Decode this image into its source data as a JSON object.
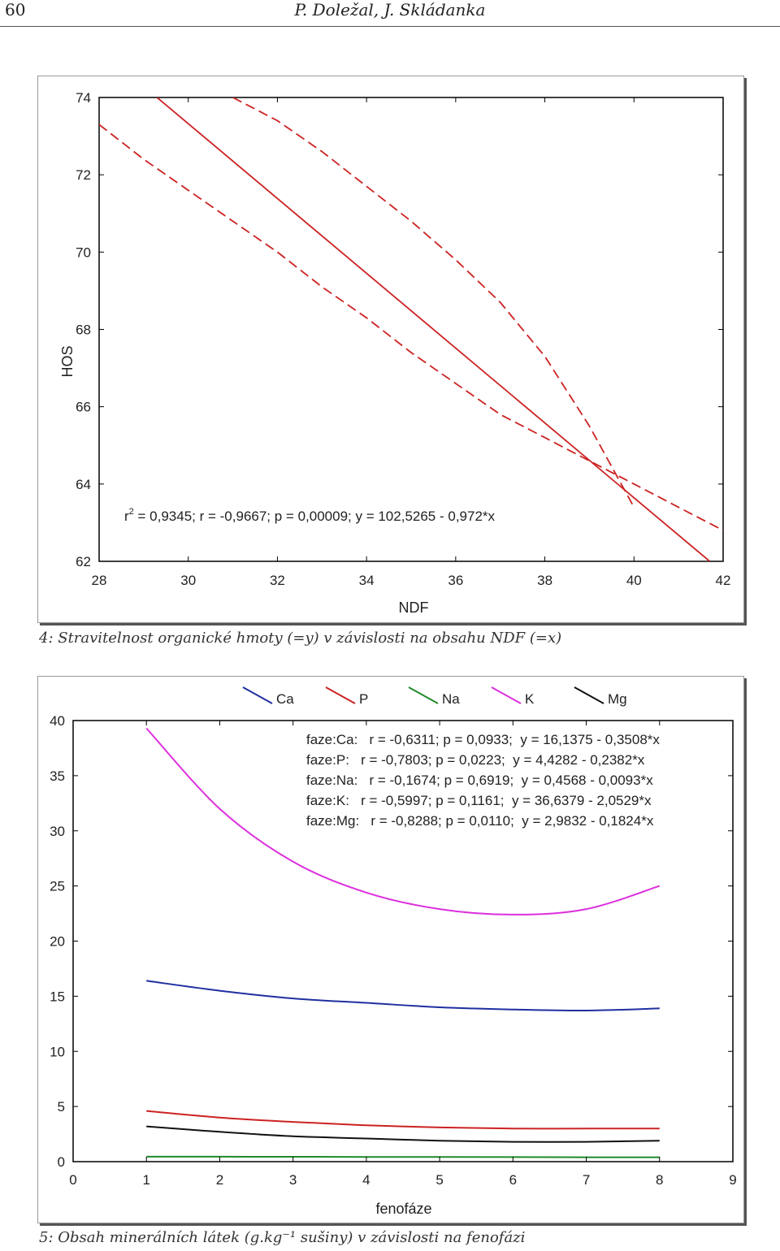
{
  "header": {
    "page_number": "60",
    "authors": "P. Doležal, J. Skládanka"
  },
  "figure4": {
    "caption": "4: Stravitelnost organické hmoty (=y) v závislosti na obsahu NDF (=x)",
    "annotation_r": "r",
    "annotation_sup": "2",
    "annotation_rest": " = 0,9345; r = -0,9667; p = 0,00009; y = 102,5265 - 0,972*x"
  },
  "figure5": {
    "caption": "5: Obsah minerálních látek (g.kg⁻¹ sušiny) v závislosti na fenofázi"
  },
  "chart_data": [
    {
      "type": "line",
      "xlabel": "NDF",
      "ylabel": "HOS",
      "xlim": [
        28,
        42
      ],
      "ylim": [
        62,
        74
      ],
      "xticks": [
        "28",
        "30",
        "32",
        "34",
        "36",
        "38",
        "40",
        "42"
      ],
      "yticks": [
        "62",
        "64",
        "66",
        "68",
        "70",
        "72",
        "74"
      ],
      "color": "#cc2222",
      "series": [
        {
          "x": [
            29.3,
            41.7
          ],
          "y": [
            74.0,
            62.0
          ]
        },
        {
          "x": [
            28.0,
            29.0,
            30.0,
            31.0,
            32.0,
            33.0,
            34.0,
            35.0,
            36.0,
            37.0,
            38.0,
            39.0,
            40.0,
            41.0,
            42.0
          ],
          "y": [
            73.3,
            72.4,
            71.6,
            70.8,
            70.0,
            69.1,
            68.3,
            67.4,
            66.6,
            65.8,
            65.2,
            64.6,
            64.0,
            63.4,
            62.8
          ]
        },
        {
          "x": [
            31.0,
            32.0,
            33.0,
            34.0,
            35.0,
            36.0,
            37.0,
            38.0,
            39.0,
            40.0
          ],
          "y": [
            74.0,
            73.4,
            72.6,
            71.7,
            70.8,
            69.8,
            68.7,
            67.3,
            65.5,
            63.4
          ]
        }
      ],
      "grid": false
    },
    {
      "type": "line",
      "xlabel": "fenofáze",
      "xlim": [
        0,
        9
      ],
      "ylim": [
        0,
        40
      ],
      "xticks": [
        "0",
        "1",
        "2",
        "3",
        "4",
        "5",
        "6",
        "7",
        "8",
        "9"
      ],
      "yticks": [
        "0",
        "5",
        "10",
        "15",
        "20",
        "25",
        "30",
        "35",
        "40"
      ],
      "x": [
        1,
        2,
        3,
        4,
        5,
        6,
        7,
        8
      ],
      "legend_position": "top",
      "series": [
        {
          "name": "Ca",
          "color": "#1f2fa0",
          "values": [
            16.4,
            15.5,
            14.8,
            14.4,
            14.0,
            13.8,
            13.7,
            13.9
          ]
        },
        {
          "name": "P",
          "color": "#cc2222",
          "values": [
            4.6,
            4.0,
            3.6,
            3.3,
            3.1,
            3.0,
            3.0,
            3.0
          ]
        },
        {
          "name": "Na",
          "color": "#1f8a2a",
          "values": [
            0.45,
            0.45,
            0.44,
            0.43,
            0.42,
            0.41,
            0.4,
            0.4
          ]
        },
        {
          "name": "K",
          "color": "#dd2fdd",
          "values": [
            39.3,
            32.0,
            27.2,
            24.4,
            22.9,
            22.4,
            22.9,
            25.0
          ]
        },
        {
          "name": "Mg",
          "color": "#111111",
          "values": [
            3.2,
            2.7,
            2.3,
            2.1,
            1.9,
            1.8,
            1.8,
            1.9
          ]
        }
      ],
      "annotations": [
        "faze:Ca:   r = -0,6311; p = 0,0933;  y = 16,1375 - 0,3508*x",
        "faze:P:   r = -0,7803; p = 0,0223;  y = 4,4282 - 0,2382*x",
        "faze:Na:   r = -0,1674; p = 0,6919;  y = 0,4568 - 0,0093*x",
        "faze:K:   r = -0,5997; p = 0,1161;  y = 36,6379 - 2,0529*x",
        "faze:Mg:   r = -0,8288; p = 0,0110;  y = 2,9832 - 0,1824*x"
      ],
      "grid": false
    }
  ]
}
